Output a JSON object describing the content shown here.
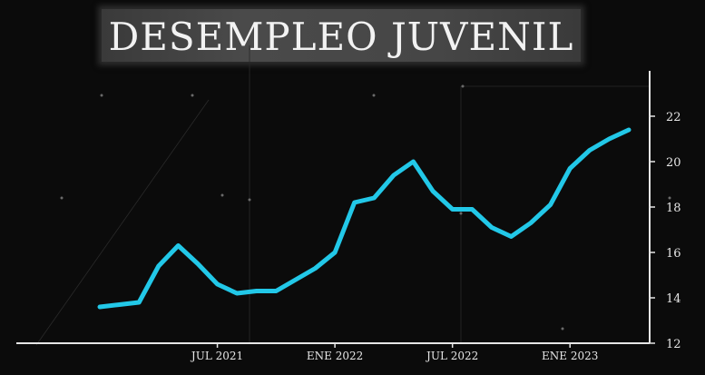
{
  "title": "DESEMPLEO JUVENIL",
  "colors": {
    "background": "#0b0b0b",
    "line": "#22c8e8",
    "axis": "#e6e6e6",
    "text": "#f2f2f2"
  },
  "chart_data": {
    "type": "line",
    "title": "DESEMPLEO JUVENIL",
    "xlabel": "",
    "ylabel": "",
    "x_tick_labels": [
      "JUL 2021",
      "ENE 2022",
      "JUL 2022",
      "ENE 2023"
    ],
    "x_tick_index": [
      6,
      12,
      18,
      24
    ],
    "y_ticks": [
      12,
      14,
      16,
      18,
      20,
      22
    ],
    "ylim": [
      12,
      23
    ],
    "grid": false,
    "legend": "none",
    "series": [
      {
        "values": [
          13.6,
          13.7,
          13.8,
          15.4,
          16.3,
          15.5,
          14.6,
          14.2,
          14.3,
          14.3,
          14.8,
          15.3,
          16.0,
          18.2,
          18.4,
          19.4,
          20.0,
          18.7,
          17.9,
          17.9,
          17.1,
          16.7,
          17.3,
          18.1,
          19.7,
          20.5,
          21.0,
          21.4
        ]
      }
    ]
  }
}
